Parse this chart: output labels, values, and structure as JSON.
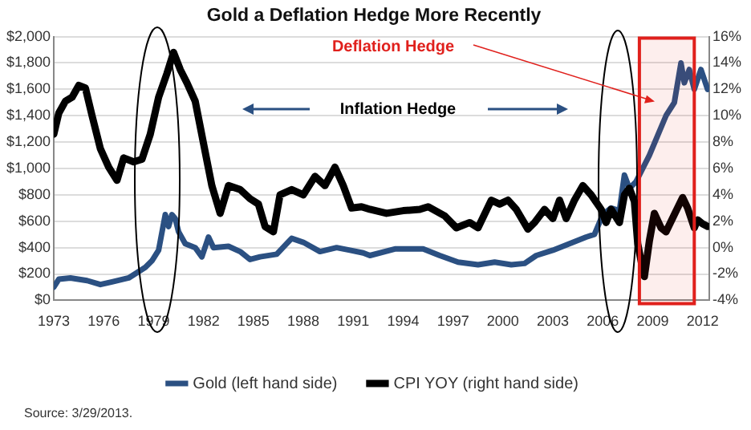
{
  "chart_data": {
    "type": "line",
    "title": "Gold a Deflation Hedge More Recently",
    "series": [
      {
        "name": "Gold (left hand side)",
        "color": "#2b5082",
        "x": [
          1973,
          1973.3,
          1974,
          1975,
          1975.8,
          1976.5,
          1977.5,
          1978.5,
          1978.9,
          1979.3,
          1979.7,
          1979.9,
          1980.1,
          1980.3,
          1980.5,
          1980.9,
          1981.5,
          1981.9,
          1982.3,
          1982.6,
          1983.5,
          1984.2,
          1984.8,
          1985.4,
          1986.4,
          1987,
          1987.3,
          1988,
          1989,
          1990,
          1990.8,
          1991.6,
          1992,
          1993.5,
          1995.2,
          1996.2,
          1997.3,
          1998.5,
          1999.5,
          2000.5,
          2001.3,
          2002,
          2003,
          2004,
          2005,
          2005.5,
          2006,
          2006.5,
          2007,
          2007.3,
          2007.6,
          2008,
          2008.4,
          2008.8,
          2009.3,
          2009.8,
          2010.3,
          2010.7,
          2010.9,
          2011.2,
          2011.5,
          2011.9,
          2012.3
        ],
        "values": [
          100,
          160,
          170,
          150,
          120,
          140,
          170,
          250,
          300,
          380,
          650,
          560,
          650,
          620,
          520,
          430,
          400,
          330,
          480,
          400,
          410,
          370,
          310,
          330,
          350,
          430,
          470,
          440,
          370,
          400,
          380,
          360,
          340,
          390,
          390,
          340,
          290,
          270,
          290,
          270,
          280,
          340,
          380,
          430,
          480,
          500,
          650,
          700,
          680,
          950,
          850,
          900,
          1000,
          1100,
          1250,
          1400,
          1500,
          1800,
          1650,
          1750,
          1600,
          1750,
          1600
        ]
      },
      {
        "name": "CPI YOY (right hand side)",
        "color": "#000000",
        "axis": "y2",
        "x": [
          1973,
          1973.3,
          1973.7,
          1974.1,
          1974.5,
          1974.9,
          1975.3,
          1975.8,
          1976.3,
          1976.8,
          1977.2,
          1977.8,
          1978.3,
          1978.8,
          1979.3,
          1979.8,
          1980.2,
          1980.6,
          1981,
          1981.5,
          1982,
          1982.5,
          1983,
          1983.5,
          1984.2,
          1984.8,
          1985.3,
          1985.7,
          1986.2,
          1986.6,
          1987.3,
          1988,
          1988.7,
          1989.3,
          1989.9,
          1990.4,
          1990.9,
          1991.5,
          1992,
          1993,
          1994,
          1995,
          1995.5,
          1996.5,
          1997.2,
          1998,
          1998.5,
          1999.3,
          1999.8,
          2000.3,
          2000.8,
          2001.5,
          2001.9,
          2002.5,
          2003,
          2003.4,
          2003.8,
          2004.3,
          2004.8,
          2005.3,
          2005.9,
          2006.2,
          2006.5,
          2007,
          2007.3,
          2007.6,
          2007.9,
          2008.1,
          2008.3,
          2008.5,
          2008.8,
          2009.1,
          2009.5,
          2009.8,
          2010.3,
          2010.8,
          2011.1,
          2011.5,
          2011.7,
          2012,
          2012.3
        ],
        "values": [
          8.6,
          10.2,
          11.1,
          11.4,
          12.3,
          12.1,
          10,
          7.5,
          6.1,
          5.1,
          6.8,
          6.5,
          6.7,
          8.6,
          11.4,
          13.2,
          14.8,
          13.5,
          12.5,
          11.1,
          7.9,
          4.7,
          2.6,
          4.7,
          4.4,
          3.7,
          3.3,
          1.6,
          1.2,
          4,
          4.4,
          4,
          5.4,
          4.7,
          6.1,
          4.7,
          3,
          3.1,
          2.9,
          2.6,
          2.8,
          2.9,
          3.1,
          2.4,
          1.5,
          1.9,
          1.5,
          3.6,
          3.3,
          3.6,
          2.9,
          1.4,
          1.9,
          2.9,
          2.2,
          3.6,
          2.2,
          3.6,
          4.7,
          4,
          2.9,
          1.9,
          2.9,
          1.9,
          4,
          4.5,
          3.5,
          0.3,
          -1,
          -2.2,
          0.5,
          2.6,
          1.5,
          1.2,
          2.5,
          3.8,
          3,
          1.5,
          2.1,
          1.8,
          1.6
        ]
      }
    ],
    "xlim": [
      1973,
      2012.4
    ],
    "xticks": [
      1973,
      1976,
      1979,
      1982,
      1985,
      1988,
      1991,
      1994,
      1997,
      2000,
      2003,
      2006,
      2009,
      2012
    ],
    "ylim": [
      0,
      2000
    ],
    "yticks": [
      {
        "value": 0,
        "label": "$0"
      },
      {
        "value": 200,
        "label": "$200"
      },
      {
        "value": 400,
        "label": "$400"
      },
      {
        "value": 600,
        "label": "$600"
      },
      {
        "value": 800,
        "label": "$800"
      },
      {
        "value": 1000,
        "label": "$1,000"
      },
      {
        "value": 1200,
        "label": "$1,200"
      },
      {
        "value": 1400,
        "label": "$1,400"
      },
      {
        "value": 1600,
        "label": "$1,600"
      },
      {
        "value": 1800,
        "label": "$1,800"
      },
      {
        "value": 2000,
        "label": "$2,000"
      }
    ],
    "y2lim": [
      -4,
      16
    ],
    "y2ticks": [
      {
        "value": -4,
        "label": "-4%"
      },
      {
        "value": -2,
        "label": "-2%"
      },
      {
        "value": 0,
        "label": "0%"
      },
      {
        "value": 2,
        "label": "2%"
      },
      {
        "value": 4,
        "label": "4%"
      },
      {
        "value": 6,
        "label": "6%"
      },
      {
        "value": 8,
        "label": "8%"
      },
      {
        "value": 10,
        "label": "10%"
      },
      {
        "value": 12,
        "label": "12%"
      },
      {
        "value": 14,
        "label": "14%"
      },
      {
        "value": 16,
        "label": "16%"
      }
    ],
    "bands": [
      {
        "axis": "x",
        "from": 2008.2,
        "to": 2011.5,
        "color": "#e0201c"
      }
    ],
    "grid": "y",
    "legend": "bottom",
    "marker": "none",
    "line_style": "solid",
    "annotations": [
      "Deflation Hedge",
      "Inflation Hedge",
      "Source: 3/29/2013."
    ]
  }
}
